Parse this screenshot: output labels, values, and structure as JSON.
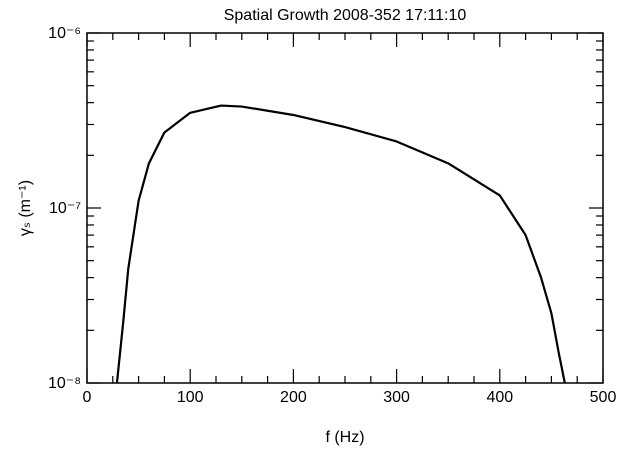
{
  "chart_data": {
    "type": "line",
    "title": "Spatial Growth   2008-352   17:11:10",
    "xlabel": "f (Hz)",
    "ylabel": "γₛ (m⁻¹)",
    "log_y": true,
    "xlim": [
      0,
      500
    ],
    "ylim": [
      1e-08,
      1e-06
    ],
    "xticks": [
      0,
      100,
      200,
      300,
      400,
      500
    ],
    "xminorticks": [
      25,
      50,
      75,
      125,
      150,
      175,
      225,
      250,
      275,
      325,
      350,
      375,
      425,
      450,
      475
    ],
    "yticks": [
      {
        "value": 1e-08,
        "label": "10⁻⁸"
      },
      {
        "value": 1e-07,
        "label": "10⁻⁷"
      },
      {
        "value": 1e-06,
        "label": "10⁻⁶"
      }
    ],
    "yminorticks": [
      2e-08,
      3e-08,
      4e-08,
      5e-08,
      6e-08,
      7e-08,
      8e-08,
      9e-08,
      2e-07,
      3e-07,
      4e-07,
      5e-07,
      6e-07,
      7e-07,
      8e-07,
      9e-07
    ],
    "color": "#000000",
    "x": [
      29,
      35,
      40,
      50,
      60,
      75,
      100,
      130,
      150,
      200,
      250,
      300,
      350,
      400,
      425,
      440,
      450,
      457,
      463
    ],
    "values": [
      1e-08,
      2.2e-08,
      4.5e-08,
      1.1e-07,
      1.8e-07,
      2.7e-07,
      3.5e-07,
      3.85e-07,
      3.8e-07,
      3.4e-07,
      2.9e-07,
      2.4e-07,
      1.8e-07,
      1.18e-07,
      7e-08,
      4e-08,
      2.5e-08,
      1.5e-08,
      1e-08
    ]
  }
}
